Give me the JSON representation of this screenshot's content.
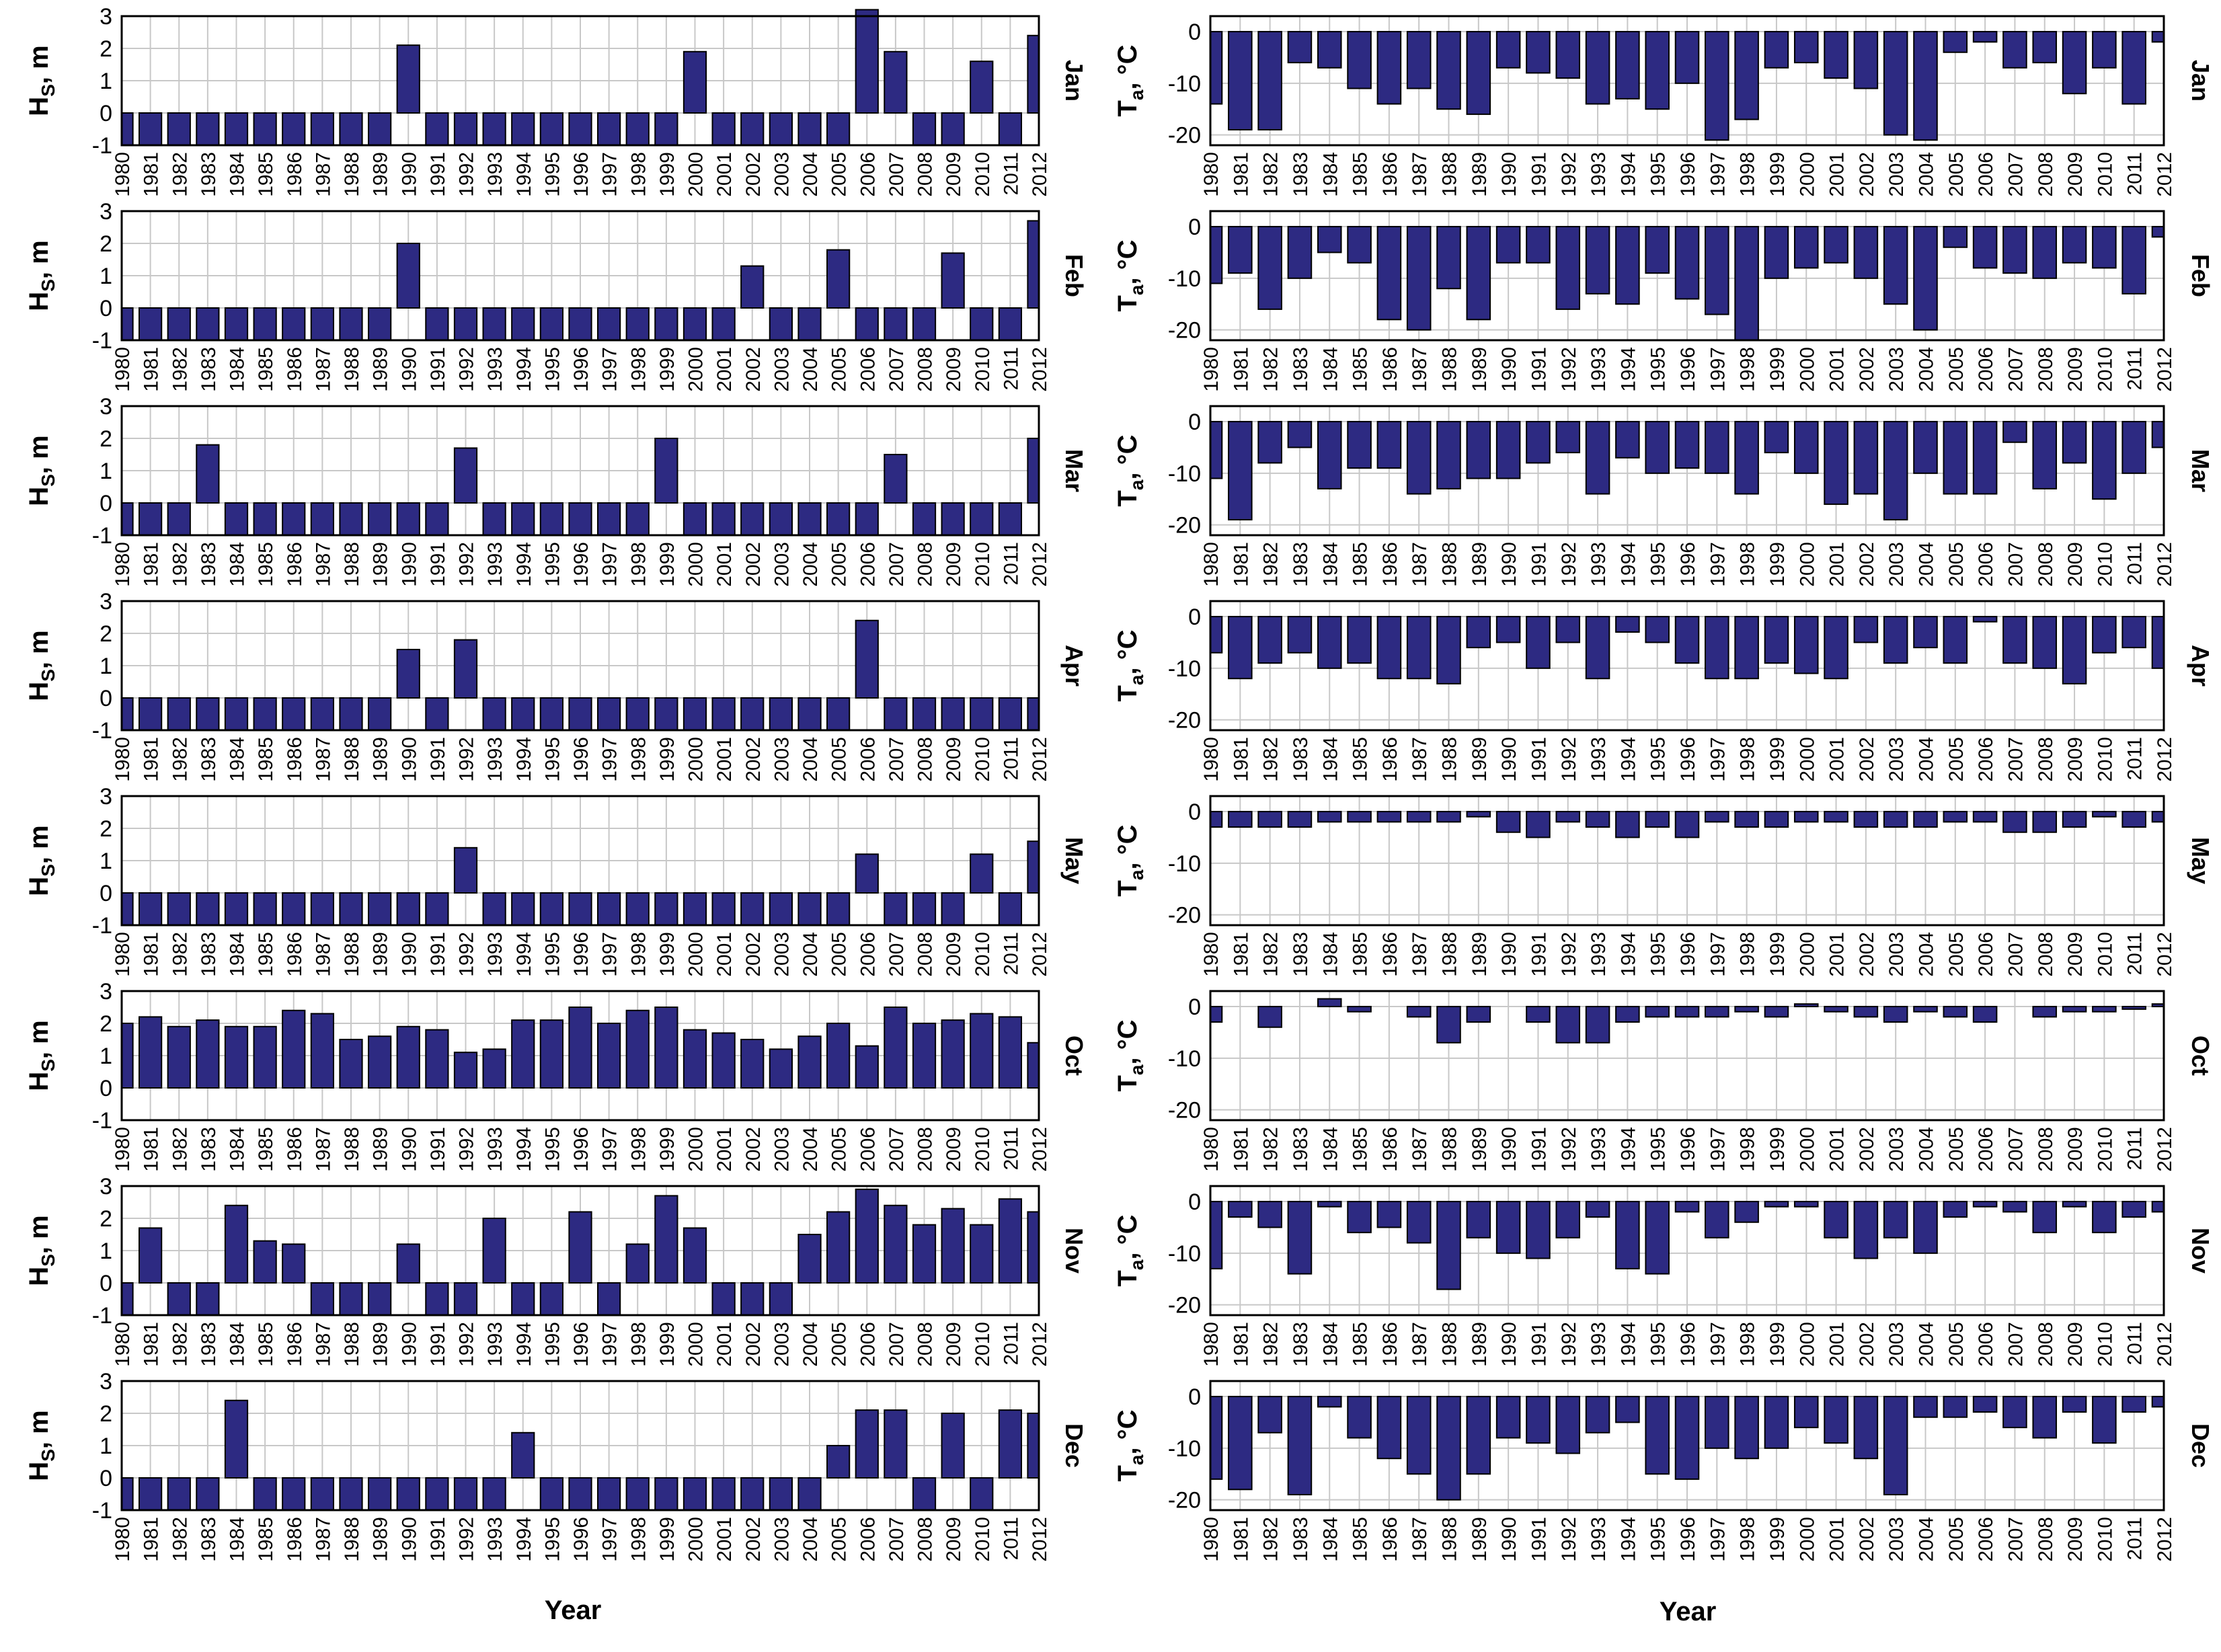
{
  "colors": {
    "bar": "#2d2a82",
    "grid": "#c8c8c8",
    "frame": "#000000"
  },
  "left_ylabel": {
    "main": "H",
    "sub": "S",
    "rest": ", m"
  },
  "right_ylabel": {
    "main": "T",
    "sub": "a",
    "rest": ", °C"
  },
  "xaxis_title_left": "Year",
  "xaxis_title_right": "Year",
  "chart_data": [
    {
      "type": "bar",
      "panel": "Hs",
      "month": "Jan",
      "ylim": [
        -1,
        3
      ],
      "yticks": [
        -1,
        0,
        1,
        2,
        3
      ],
      "grid": true,
      "categories": [
        "1980",
        "1981",
        "1982",
        "1983",
        "1984",
        "1985",
        "1986",
        "1987",
        "1988",
        "1989",
        "1990",
        "1991",
        "1992",
        "1993",
        "1994",
        "1995",
        "1996",
        "1997",
        "1998",
        "1999",
        "2000",
        "2001",
        "2002",
        "2003",
        "2004",
        "2005",
        "2006",
        "2007",
        "2008",
        "2009",
        "2010",
        "2011",
        "2012"
      ],
      "values": [
        -1,
        -1,
        -1,
        -1,
        -1,
        -1,
        -1,
        -1,
        -1,
        -1,
        2.1,
        -1,
        -1,
        -1,
        -1,
        -1,
        -1,
        -1,
        -1,
        -1,
        1.9,
        -1,
        -1,
        -1,
        -1,
        -1,
        3.2,
        1.9,
        -1,
        -1,
        1.6,
        -1,
        2.4
      ]
    },
    {
      "type": "bar",
      "panel": "Hs",
      "month": "Feb",
      "ylim": [
        -1,
        3
      ],
      "yticks": [
        -1,
        0,
        1,
        2,
        3
      ],
      "grid": true,
      "categories": [
        "1980",
        "1981",
        "1982",
        "1983",
        "1984",
        "1985",
        "1986",
        "1987",
        "1988",
        "1989",
        "1990",
        "1991",
        "1992",
        "1993",
        "1994",
        "1995",
        "1996",
        "1997",
        "1998",
        "1999",
        "2000",
        "2001",
        "2002",
        "2003",
        "2004",
        "2005",
        "2006",
        "2007",
        "2008",
        "2009",
        "2010",
        "2011",
        "2012"
      ],
      "values": [
        -1,
        -1,
        -1,
        -1,
        -1,
        -1,
        -1,
        -1,
        -1,
        -1,
        2.0,
        -1,
        -1,
        -1,
        -1,
        -1,
        -1,
        -1,
        -1,
        -1,
        -1,
        -1,
        1.3,
        -1,
        -1,
        1.8,
        -1,
        -1,
        -1,
        1.7,
        -1,
        -1,
        2.7
      ]
    },
    {
      "type": "bar",
      "panel": "Hs",
      "month": "Mar",
      "ylim": [
        -1,
        3
      ],
      "yticks": [
        -1,
        0,
        1,
        2,
        3
      ],
      "grid": true,
      "categories": [
        "1980",
        "1981",
        "1982",
        "1983",
        "1984",
        "1985",
        "1986",
        "1987",
        "1988",
        "1989",
        "1990",
        "1991",
        "1992",
        "1993",
        "1994",
        "1995",
        "1996",
        "1997",
        "1998",
        "1999",
        "2000",
        "2001",
        "2002",
        "2003",
        "2004",
        "2005",
        "2006",
        "2007",
        "2008",
        "2009",
        "2010",
        "2011",
        "2012"
      ],
      "values": [
        -1,
        -1,
        -1,
        1.8,
        -1,
        -1,
        -1,
        -1,
        -1,
        -1,
        -1,
        -1,
        1.7,
        -1,
        -1,
        -1,
        -1,
        -1,
        -1,
        2.0,
        -1,
        -1,
        -1,
        -1,
        -1,
        -1,
        -1,
        1.5,
        -1,
        -1,
        -1,
        -1,
        2.0
      ]
    },
    {
      "type": "bar",
      "panel": "Hs",
      "month": "Apr",
      "ylim": [
        -1,
        3
      ],
      "yticks": [
        -1,
        0,
        1,
        2,
        3
      ],
      "grid": true,
      "categories": [
        "1980",
        "1981",
        "1982",
        "1983",
        "1984",
        "1985",
        "1986",
        "1987",
        "1988",
        "1989",
        "1990",
        "1991",
        "1992",
        "1993",
        "1994",
        "1995",
        "1996",
        "1997",
        "1998",
        "1999",
        "2000",
        "2001",
        "2002",
        "2003",
        "2004",
        "2005",
        "2006",
        "2007",
        "2008",
        "2009",
        "2010",
        "2011",
        "2012"
      ],
      "values": [
        -1,
        -1,
        -1,
        -1,
        -1,
        -1,
        -1,
        -1,
        -1,
        -1,
        1.5,
        -1,
        1.8,
        -1,
        -1,
        -1,
        -1,
        -1,
        -1,
        -1,
        -1,
        -1,
        -1,
        -1,
        -1,
        -1,
        2.4,
        -1,
        -1,
        -1,
        -1,
        -1,
        -1
      ]
    },
    {
      "type": "bar",
      "panel": "Hs",
      "month": "May",
      "ylim": [
        -1,
        3
      ],
      "yticks": [
        -1,
        0,
        1,
        2,
        3
      ],
      "grid": true,
      "categories": [
        "1980",
        "1981",
        "1982",
        "1983",
        "1984",
        "1985",
        "1986",
        "1987",
        "1988",
        "1989",
        "1990",
        "1991",
        "1992",
        "1993",
        "1994",
        "1995",
        "1996",
        "1997",
        "1998",
        "1999",
        "2000",
        "2001",
        "2002",
        "2003",
        "2004",
        "2005",
        "2006",
        "2007",
        "2008",
        "2009",
        "2010",
        "2011",
        "2012"
      ],
      "values": [
        -1,
        -1,
        -1,
        -1,
        -1,
        -1,
        -1,
        -1,
        -1,
        -1,
        -1,
        -1,
        1.4,
        -1,
        -1,
        -1,
        -1,
        -1,
        -1,
        -1,
        -1,
        -1,
        -1,
        -1,
        -1,
        -1,
        1.2,
        -1,
        -1,
        -1,
        1.2,
        -1,
        1.6
      ]
    },
    {
      "type": "bar",
      "panel": "Hs",
      "month": "Oct",
      "ylim": [
        -1,
        3
      ],
      "yticks": [
        -1,
        0,
        1,
        2,
        3
      ],
      "grid": true,
      "categories": [
        "1980",
        "1981",
        "1982",
        "1983",
        "1984",
        "1985",
        "1986",
        "1987",
        "1988",
        "1989",
        "1990",
        "1991",
        "1992",
        "1993",
        "1994",
        "1995",
        "1996",
        "1997",
        "1998",
        "1999",
        "2000",
        "2001",
        "2002",
        "2003",
        "2004",
        "2005",
        "2006",
        "2007",
        "2008",
        "2009",
        "2010",
        "2011",
        "2012"
      ],
      "values": [
        2.0,
        2.2,
        1.9,
        2.1,
        1.9,
        1.9,
        2.4,
        2.3,
        1.5,
        1.6,
        1.9,
        1.8,
        1.1,
        1.2,
        2.1,
        2.1,
        2.5,
        2.0,
        2.4,
        2.5,
        1.8,
        1.7,
        1.5,
        1.2,
        1.6,
        2.0,
        1.3,
        2.5,
        2.0,
        2.1,
        2.3,
        2.2,
        1.4
      ]
    },
    {
      "type": "bar",
      "panel": "Hs",
      "month": "Nov",
      "ylim": [
        -1,
        3
      ],
      "yticks": [
        -1,
        0,
        1,
        2,
        3
      ],
      "grid": true,
      "categories": [
        "1980",
        "1981",
        "1982",
        "1983",
        "1984",
        "1985",
        "1986",
        "1987",
        "1988",
        "1989",
        "1990",
        "1991",
        "1992",
        "1993",
        "1994",
        "1995",
        "1996",
        "1997",
        "1998",
        "1999",
        "2000",
        "2001",
        "2002",
        "2003",
        "2004",
        "2005",
        "2006",
        "2007",
        "2008",
        "2009",
        "2010",
        "2011",
        "2012"
      ],
      "values": [
        -1,
        1.7,
        -1,
        -1,
        2.4,
        1.3,
        1.2,
        -1,
        -1,
        -1,
        1.2,
        -1,
        -1,
        2.0,
        -1,
        -1,
        2.2,
        -1,
        1.2,
        2.7,
        1.7,
        -1,
        -1,
        -1,
        1.5,
        2.2,
        2.9,
        2.4,
        1.8,
        2.3,
        1.8,
        2.6,
        2.2
      ]
    },
    {
      "type": "bar",
      "panel": "Hs",
      "month": "Dec",
      "ylim": [
        -1,
        3
      ],
      "yticks": [
        -1,
        0,
        1,
        2,
        3
      ],
      "grid": true,
      "categories": [
        "1980",
        "1981",
        "1982",
        "1983",
        "1984",
        "1985",
        "1986",
        "1987",
        "1988",
        "1989",
        "1990",
        "1991",
        "1992",
        "1993",
        "1994",
        "1995",
        "1996",
        "1997",
        "1998",
        "1999",
        "2000",
        "2001",
        "2002",
        "2003",
        "2004",
        "2005",
        "2006",
        "2007",
        "2008",
        "2009",
        "2010",
        "2011",
        "2012"
      ],
      "values": [
        -1,
        -1,
        -1,
        -1,
        2.4,
        -1,
        -1,
        -1,
        -1,
        -1,
        -1,
        -1,
        -1,
        -1,
        1.4,
        -1,
        -1,
        -1,
        -1,
        -1,
        -1,
        -1,
        -1,
        -1,
        -1,
        1.0,
        2.1,
        2.1,
        -1,
        2.0,
        -1,
        2.1,
        2.0
      ]
    },
    {
      "type": "bar",
      "panel": "Ta",
      "month": "Jan",
      "ylim": [
        -22,
        3
      ],
      "yticks": [
        -20,
        -10,
        0
      ],
      "grid": true,
      "categories": [
        "1980",
        "1981",
        "1982",
        "1983",
        "1984",
        "1985",
        "1986",
        "1987",
        "1988",
        "1989",
        "1990",
        "1991",
        "1992",
        "1993",
        "1994",
        "1995",
        "1996",
        "1997",
        "1998",
        "1999",
        "2000",
        "2001",
        "2002",
        "2003",
        "2004",
        "2005",
        "2006",
        "2007",
        "2008",
        "2009",
        "2010",
        "2011",
        "2012"
      ],
      "values": [
        -14,
        -19,
        -19,
        -6,
        -7,
        -11,
        -14,
        -11,
        -15,
        -16,
        -7,
        -8,
        -9,
        -14,
        -13,
        -15,
        -10,
        -21,
        -17,
        -7,
        -6,
        -9,
        -11,
        -20,
        -21,
        -4,
        -2,
        -7,
        -6,
        -12,
        -7,
        -14,
        -2
      ]
    },
    {
      "type": "bar",
      "panel": "Ta",
      "month": "Feb",
      "ylim": [
        -22,
        3
      ],
      "yticks": [
        -20,
        -10,
        0
      ],
      "grid": true,
      "categories": [
        "1980",
        "1981",
        "1982",
        "1983",
        "1984",
        "1985",
        "1986",
        "1987",
        "1988",
        "1989",
        "1990",
        "1991",
        "1992",
        "1993",
        "1994",
        "1995",
        "1996",
        "1997",
        "1998",
        "1999",
        "2000",
        "2001",
        "2002",
        "2003",
        "2004",
        "2005",
        "2006",
        "2007",
        "2008",
        "2009",
        "2010",
        "2011",
        "2012"
      ],
      "values": [
        -11,
        -9,
        -16,
        -10,
        -5,
        -7,
        -18,
        -20,
        -12,
        -18,
        -7,
        -7,
        -16,
        -13,
        -15,
        -9,
        -14,
        -17,
        -22,
        -10,
        -8,
        -7,
        -10,
        -15,
        -20,
        -4,
        -8,
        -9,
        -10,
        -7,
        -8,
        -13,
        -2
      ]
    },
    {
      "type": "bar",
      "panel": "Ta",
      "month": "Mar",
      "ylim": [
        -22,
        3
      ],
      "yticks": [
        -20,
        -10,
        0
      ],
      "grid": true,
      "categories": [
        "1980",
        "1981",
        "1982",
        "1983",
        "1984",
        "1985",
        "1986",
        "1987",
        "1988",
        "1989",
        "1990",
        "1991",
        "1992",
        "1993",
        "1994",
        "1995",
        "1996",
        "1997",
        "1998",
        "1999",
        "2000",
        "2001",
        "2002",
        "2003",
        "2004",
        "2005",
        "2006",
        "2007",
        "2008",
        "2009",
        "2010",
        "2011",
        "2012"
      ],
      "values": [
        -11,
        -19,
        -8,
        -5,
        -13,
        -9,
        -9,
        -14,
        -13,
        -11,
        -11,
        -8,
        -6,
        -14,
        -7,
        -10,
        -9,
        -10,
        -14,
        -6,
        -10,
        -16,
        -14,
        -19,
        -10,
        -14,
        -14,
        -4,
        -13,
        -8,
        -15,
        -10,
        -5
      ]
    },
    {
      "type": "bar",
      "panel": "Ta",
      "month": "Apr",
      "ylim": [
        -22,
        3
      ],
      "yticks": [
        -20,
        -10,
        0
      ],
      "grid": true,
      "categories": [
        "1980",
        "1981",
        "1982",
        "1983",
        "1984",
        "1985",
        "1986",
        "1987",
        "1988",
        "1989",
        "1990",
        "1991",
        "1992",
        "1993",
        "1994",
        "1995",
        "1996",
        "1997",
        "1998",
        "1999",
        "2000",
        "2001",
        "2002",
        "2003",
        "2004",
        "2005",
        "2006",
        "2007",
        "2008",
        "2009",
        "2010",
        "2011",
        "2012"
      ],
      "values": [
        -7,
        -12,
        -9,
        -7,
        -10,
        -9,
        -12,
        -12,
        -13,
        -6,
        -5,
        -10,
        -5,
        -12,
        -3,
        -5,
        -9,
        -12,
        -12,
        -9,
        -11,
        -12,
        -5,
        -9,
        -6,
        -9,
        -1,
        -9,
        -10,
        -13,
        -7,
        -6,
        -10
      ]
    },
    {
      "type": "bar",
      "panel": "Ta",
      "month": "May",
      "ylim": [
        -22,
        3
      ],
      "yticks": [
        -20,
        -10,
        0
      ],
      "grid": true,
      "categories": [
        "1980",
        "1981",
        "1982",
        "1983",
        "1984",
        "1985",
        "1986",
        "1987",
        "1988",
        "1989",
        "1990",
        "1991",
        "1992",
        "1993",
        "1994",
        "1995",
        "1996",
        "1997",
        "1998",
        "1999",
        "2000",
        "2001",
        "2002",
        "2003",
        "2004",
        "2005",
        "2006",
        "2007",
        "2008",
        "2009",
        "2010",
        "2011",
        "2012"
      ],
      "values": [
        -3,
        -3,
        -3,
        -3,
        -2,
        -2,
        -2,
        -2,
        -2,
        -1,
        -4,
        -5,
        -2,
        -3,
        -5,
        -3,
        -5,
        -2,
        -3,
        -3,
        -2,
        -2,
        -3,
        -3,
        -3,
        -2,
        -2,
        -4,
        -4,
        -3,
        -1,
        -3,
        -2
      ]
    },
    {
      "type": "bar",
      "panel": "Ta",
      "month": "Oct",
      "ylim": [
        -22,
        3
      ],
      "yticks": [
        -20,
        -10,
        0
      ],
      "grid": true,
      "categories": [
        "1980",
        "1981",
        "1982",
        "1983",
        "1984",
        "1985",
        "1986",
        "1987",
        "1988",
        "1989",
        "1990",
        "1991",
        "1992",
        "1993",
        "1994",
        "1995",
        "1996",
        "1997",
        "1998",
        "1999",
        "2000",
        "2001",
        "2002",
        "2003",
        "2004",
        "2005",
        "2006",
        "2007",
        "2008",
        "2009",
        "2010",
        "2011",
        "2012"
      ],
      "values": [
        -3,
        0,
        -4,
        0,
        1.5,
        -1,
        0,
        -2,
        -7,
        -3,
        0,
        -3,
        -7,
        -7,
        -3,
        -2,
        -2,
        -2,
        -1,
        -2,
        0.5,
        -1,
        -2,
        -3,
        -1,
        -2,
        -3,
        0,
        -2,
        -1,
        -1,
        -0.5,
        0.5
      ]
    },
    {
      "type": "bar",
      "panel": "Ta",
      "month": "Nov",
      "ylim": [
        -22,
        3
      ],
      "yticks": [
        -20,
        -10,
        0
      ],
      "grid": true,
      "categories": [
        "1980",
        "1981",
        "1982",
        "1983",
        "1984",
        "1985",
        "1986",
        "1987",
        "1988",
        "1989",
        "1990",
        "1991",
        "1992",
        "1993",
        "1994",
        "1995",
        "1996",
        "1997",
        "1998",
        "1999",
        "2000",
        "2001",
        "2002",
        "2003",
        "2004",
        "2005",
        "2006",
        "2007",
        "2008",
        "2009",
        "2010",
        "2011",
        "2012"
      ],
      "values": [
        -13,
        -3,
        -5,
        -14,
        -1,
        -6,
        -5,
        -8,
        -17,
        -7,
        -10,
        -11,
        -7,
        -3,
        -13,
        -14,
        -2,
        -7,
        -4,
        -1,
        -1,
        -7,
        -11,
        -7,
        -10,
        -3,
        -1,
        -2,
        -6,
        -1,
        -6,
        -3,
        -2
      ]
    },
    {
      "type": "bar",
      "panel": "Ta",
      "month": "Dec",
      "ylim": [
        -22,
        3
      ],
      "yticks": [
        -20,
        -10,
        0
      ],
      "grid": true,
      "categories": [
        "1980",
        "1981",
        "1982",
        "1983",
        "1984",
        "1985",
        "1986",
        "1987",
        "1988",
        "1989",
        "1990",
        "1991",
        "1992",
        "1993",
        "1994",
        "1995",
        "1996",
        "1997",
        "1998",
        "1999",
        "2000",
        "2001",
        "2002",
        "2003",
        "2004",
        "2005",
        "2006",
        "2007",
        "2008",
        "2009",
        "2010",
        "2011",
        "2012"
      ],
      "values": [
        -16,
        -18,
        -7,
        -19,
        -2,
        -8,
        -12,
        -15,
        -20,
        -15,
        -8,
        -9,
        -11,
        -7,
        -5,
        -15,
        -16,
        -10,
        -12,
        -10,
        -6,
        -9,
        -12,
        -19,
        -4,
        -4,
        -3,
        -6,
        -8,
        -3,
        -9,
        -3,
        -2
      ]
    }
  ]
}
